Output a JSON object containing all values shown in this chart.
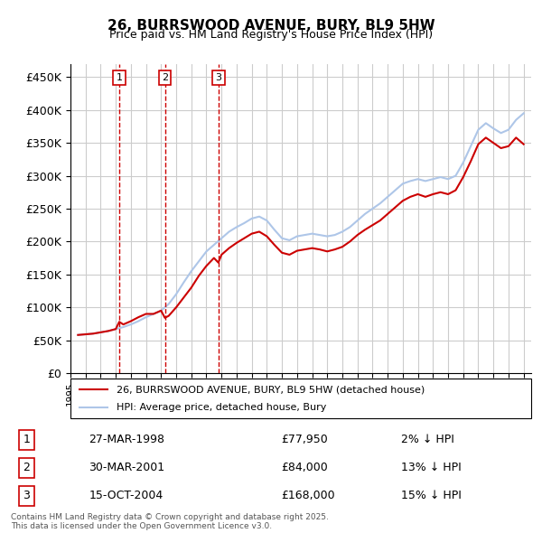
{
  "title": "26, BURRSWOOD AVENUE, BURY, BL9 5HW",
  "subtitle": "Price paid vs. HM Land Registry's House Price Index (HPI)",
  "legend_line1": "26, BURRSWOOD AVENUE, BURY, BL9 5HW (detached house)",
  "legend_line2": "HPI: Average price, detached house, Bury",
  "hpi_color": "#aec6e8",
  "price_color": "#cc0000",
  "sale_color": "#cc0000",
  "background_color": "#ffffff",
  "grid_color": "#cccccc",
  "ylim": [
    0,
    470000
  ],
  "yticks": [
    0,
    50000,
    100000,
    150000,
    200000,
    250000,
    300000,
    350000,
    400000,
    450000
  ],
  "ytick_labels": [
    "£0",
    "£50K",
    "£100K",
    "£150K",
    "£200K",
    "£250K",
    "£300K",
    "£350K",
    "£400K",
    "£450K"
  ],
  "sales": [
    {
      "label": "1",
      "date": "27-MAR-1998",
      "price": 77950,
      "note": "2% ↓ HPI",
      "x": 1998.23
    },
    {
      "label": "2",
      "date": "30-MAR-2001",
      "price": 84000,
      "note": "13% ↓ HPI",
      "x": 2001.25
    },
    {
      "label": "3",
      "date": "15-OCT-2004",
      "price": 168000,
      "note": "15% ↓ HPI",
      "x": 2004.79
    }
  ],
  "footer": "Contains HM Land Registry data © Crown copyright and database right 2025.\nThis data is licensed under the Open Government Licence v3.0.",
  "hpi_data_x": [
    1995.5,
    1996.0,
    1996.5,
    1997.0,
    1997.5,
    1998.0,
    1998.5,
    1999.0,
    1999.5,
    2000.0,
    2000.5,
    2001.0,
    2001.5,
    2002.0,
    2002.5,
    2003.0,
    2003.5,
    2004.0,
    2004.5,
    2005.0,
    2005.5,
    2006.0,
    2006.5,
    2007.0,
    2007.5,
    2008.0,
    2008.5,
    2009.0,
    2009.5,
    2010.0,
    2010.5,
    2011.0,
    2011.5,
    2012.0,
    2012.5,
    2013.0,
    2013.5,
    2014.0,
    2014.5,
    2015.0,
    2015.5,
    2016.0,
    2016.5,
    2017.0,
    2017.5,
    2018.0,
    2018.5,
    2019.0,
    2019.5,
    2020.0,
    2020.5,
    2021.0,
    2021.5,
    2022.0,
    2022.5,
    2023.0,
    2023.5,
    2024.0,
    2024.5,
    2025.0
  ],
  "hpi_data_y": [
    58000,
    59000,
    60000,
    62000,
    64000,
    67000,
    70000,
    74000,
    79000,
    85000,
    90000,
    95000,
    105000,
    120000,
    138000,
    155000,
    170000,
    185000,
    195000,
    205000,
    215000,
    222000,
    228000,
    235000,
    238000,
    232000,
    218000,
    205000,
    202000,
    208000,
    210000,
    212000,
    210000,
    208000,
    210000,
    215000,
    222000,
    232000,
    242000,
    250000,
    258000,
    268000,
    278000,
    288000,
    292000,
    295000,
    292000,
    295000,
    298000,
    295000,
    300000,
    320000,
    345000,
    370000,
    380000,
    372000,
    365000,
    370000,
    385000,
    395000
  ],
  "price_data_x": [
    1995.5,
    1996.0,
    1996.5,
    1997.0,
    1997.5,
    1998.0,
    1998.23,
    1998.5,
    1999.0,
    1999.5,
    2000.0,
    2000.5,
    2001.0,
    2001.25,
    2001.5,
    2002.0,
    2002.5,
    2003.0,
    2003.5,
    2004.0,
    2004.5,
    2004.79,
    2005.0,
    2005.5,
    2006.0,
    2006.5,
    2007.0,
    2007.5,
    2008.0,
    2008.5,
    2009.0,
    2009.5,
    2010.0,
    2010.5,
    2011.0,
    2011.5,
    2012.0,
    2012.5,
    2013.0,
    2013.5,
    2014.0,
    2014.5,
    2015.0,
    2015.5,
    2016.0,
    2016.5,
    2017.0,
    2017.5,
    2018.0,
    2018.5,
    2019.0,
    2019.5,
    2020.0,
    2020.5,
    2021.0,
    2021.5,
    2022.0,
    2022.5,
    2023.0,
    2023.5,
    2024.0,
    2024.5,
    2025.0
  ],
  "price_data_y": [
    58000,
    59000,
    60000,
    62000,
    64000,
    67000,
    77950,
    74000,
    79000,
    85000,
    90000,
    90000,
    95000,
    84000,
    87000,
    100000,
    115000,
    130000,
    148000,
    163000,
    175000,
    168000,
    180000,
    190000,
    198000,
    205000,
    212000,
    215000,
    208000,
    195000,
    183000,
    180000,
    186000,
    188000,
    190000,
    188000,
    185000,
    188000,
    192000,
    200000,
    210000,
    218000,
    225000,
    232000,
    242000,
    252000,
    262000,
    268000,
    272000,
    268000,
    272000,
    275000,
    272000,
    278000,
    298000,
    322000,
    348000,
    358000,
    350000,
    342000,
    345000,
    358000,
    348000
  ]
}
